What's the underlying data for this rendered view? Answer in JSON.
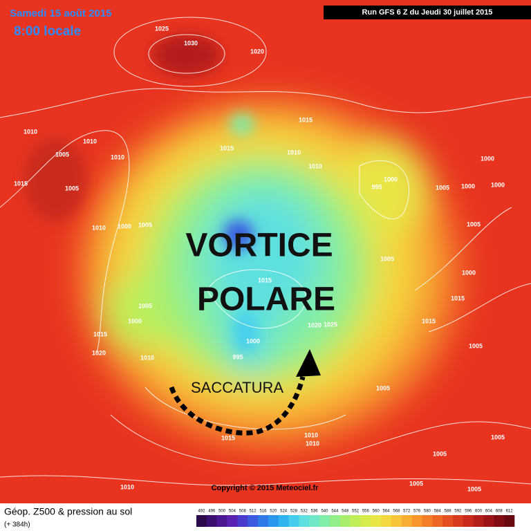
{
  "header": {
    "date": "Samedi 15 août 2015",
    "time": "8:00 locale",
    "run": "Run GFS 6 Z du Jeudi 30 juillet 2015"
  },
  "annotations": {
    "line1": "VORTICE",
    "line2": "POLARE",
    "trough": "SACCATURA"
  },
  "isobar_labels": [
    "1025",
    "1030",
    "1020",
    "1010",
    "1010",
    "1005",
    "1010",
    "1015",
    "1005",
    "1010",
    "1000",
    "1005",
    "1015",
    "1015",
    "1010",
    "1010",
    "995",
    "1000",
    "1005",
    "1000",
    "1000",
    "1000",
    "1005",
    "1005",
    "1000",
    "1015",
    "1015",
    "1015",
    "1005",
    "1000",
    "1015",
    "1020",
    "1010",
    "1000",
    "995",
    "1025",
    "1020",
    "1005",
    "1005",
    "1015",
    "1010",
    "1010",
    "1005",
    "1005",
    "1005",
    "1010",
    "1005"
  ],
  "footer": {
    "title": "Géop. Z500 & pression au sol",
    "lead": "(+ 384h)",
    "copyright": "Copyright © 2015 Meteociel.fr"
  },
  "legend": {
    "ticks": [
      492,
      496,
      500,
      504,
      508,
      512,
      516,
      520,
      524,
      528,
      532,
      536,
      540,
      544,
      548,
      552,
      556,
      560,
      564,
      568,
      572,
      576,
      580,
      584,
      588,
      592,
      596,
      600,
      604,
      608,
      612
    ],
    "colors": [
      "#2a0a4a",
      "#3b0f70",
      "#4b1790",
      "#5a22b0",
      "#4a3ccf",
      "#3b5ae0",
      "#2f7ae8",
      "#2a96ee",
      "#30b4f0",
      "#45cdee",
      "#5fe0e0",
      "#6fe8c8",
      "#80eda8",
      "#92ee88",
      "#a8ee6c",
      "#c0ee58",
      "#d6ec4c",
      "#e8e646",
      "#f4d840",
      "#f8c438",
      "#f8ae32",
      "#f8962c",
      "#f47e28",
      "#ee6624",
      "#e44e20",
      "#d83a1e",
      "#c82a1c",
      "#b41e1a",
      "#9c1418",
      "#820c14",
      "#680810"
    ]
  }
}
